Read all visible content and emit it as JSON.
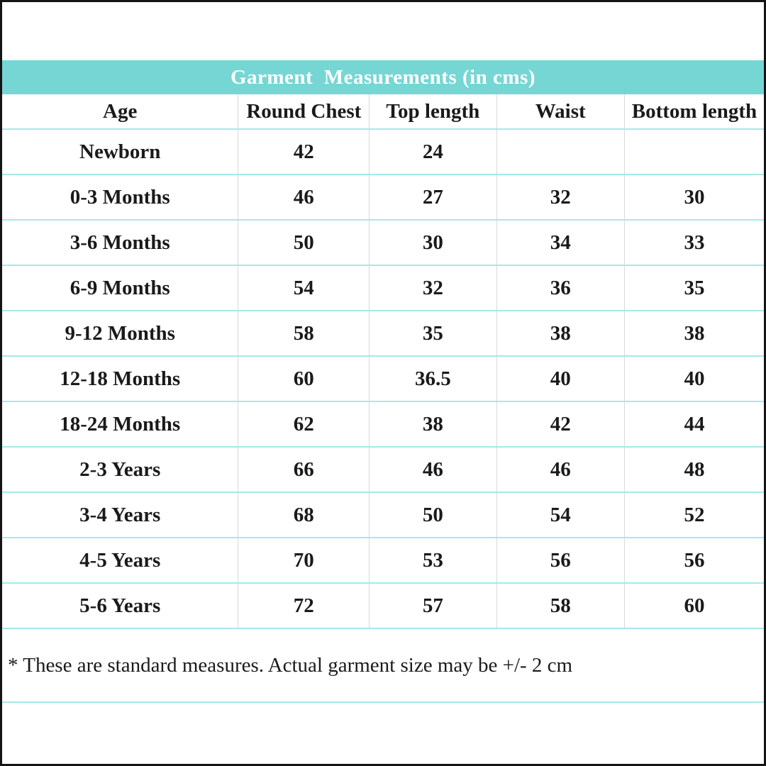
{
  "chart_data": {
    "type": "table",
    "title": "Garment  Measurements (in cms)",
    "columns": [
      "Age",
      "Round Chest",
      "Top length",
      "Waist",
      "Bottom length"
    ],
    "rows": [
      [
        "Newborn",
        "42",
        "24",
        "",
        ""
      ],
      [
        "0-3 Months",
        "46",
        "27",
        "32",
        "30"
      ],
      [
        "3-6 Months",
        "50",
        "30",
        "34",
        "33"
      ],
      [
        "6-9 Months",
        "54",
        "32",
        "36",
        "35"
      ],
      [
        "9-12 Months",
        "58",
        "35",
        "38",
        "38"
      ],
      [
        "12-18 Months",
        "60",
        "36.5",
        "40",
        "40"
      ],
      [
        "18-24 Months",
        "62",
        "38",
        "42",
        "44"
      ],
      [
        "2-3 Years",
        "66",
        "46",
        "46",
        "48"
      ],
      [
        "3-4 Years",
        "68",
        "50",
        "54",
        "52"
      ],
      [
        "4-5 Years",
        "70",
        "53",
        "56",
        "56"
      ],
      [
        "5-6 Years",
        "72",
        "57",
        "58",
        "60"
      ]
    ],
    "footnote": "* These are standard measures. Actual garment size may be +/- 2 cm"
  },
  "colors": {
    "header_bg": "#76d6d4",
    "header_text": "#ffffff",
    "row_divider": "#a5e9e8",
    "col_divider": "#d9d9d9",
    "text": "#1a1a1a",
    "frame": "#141414"
  }
}
